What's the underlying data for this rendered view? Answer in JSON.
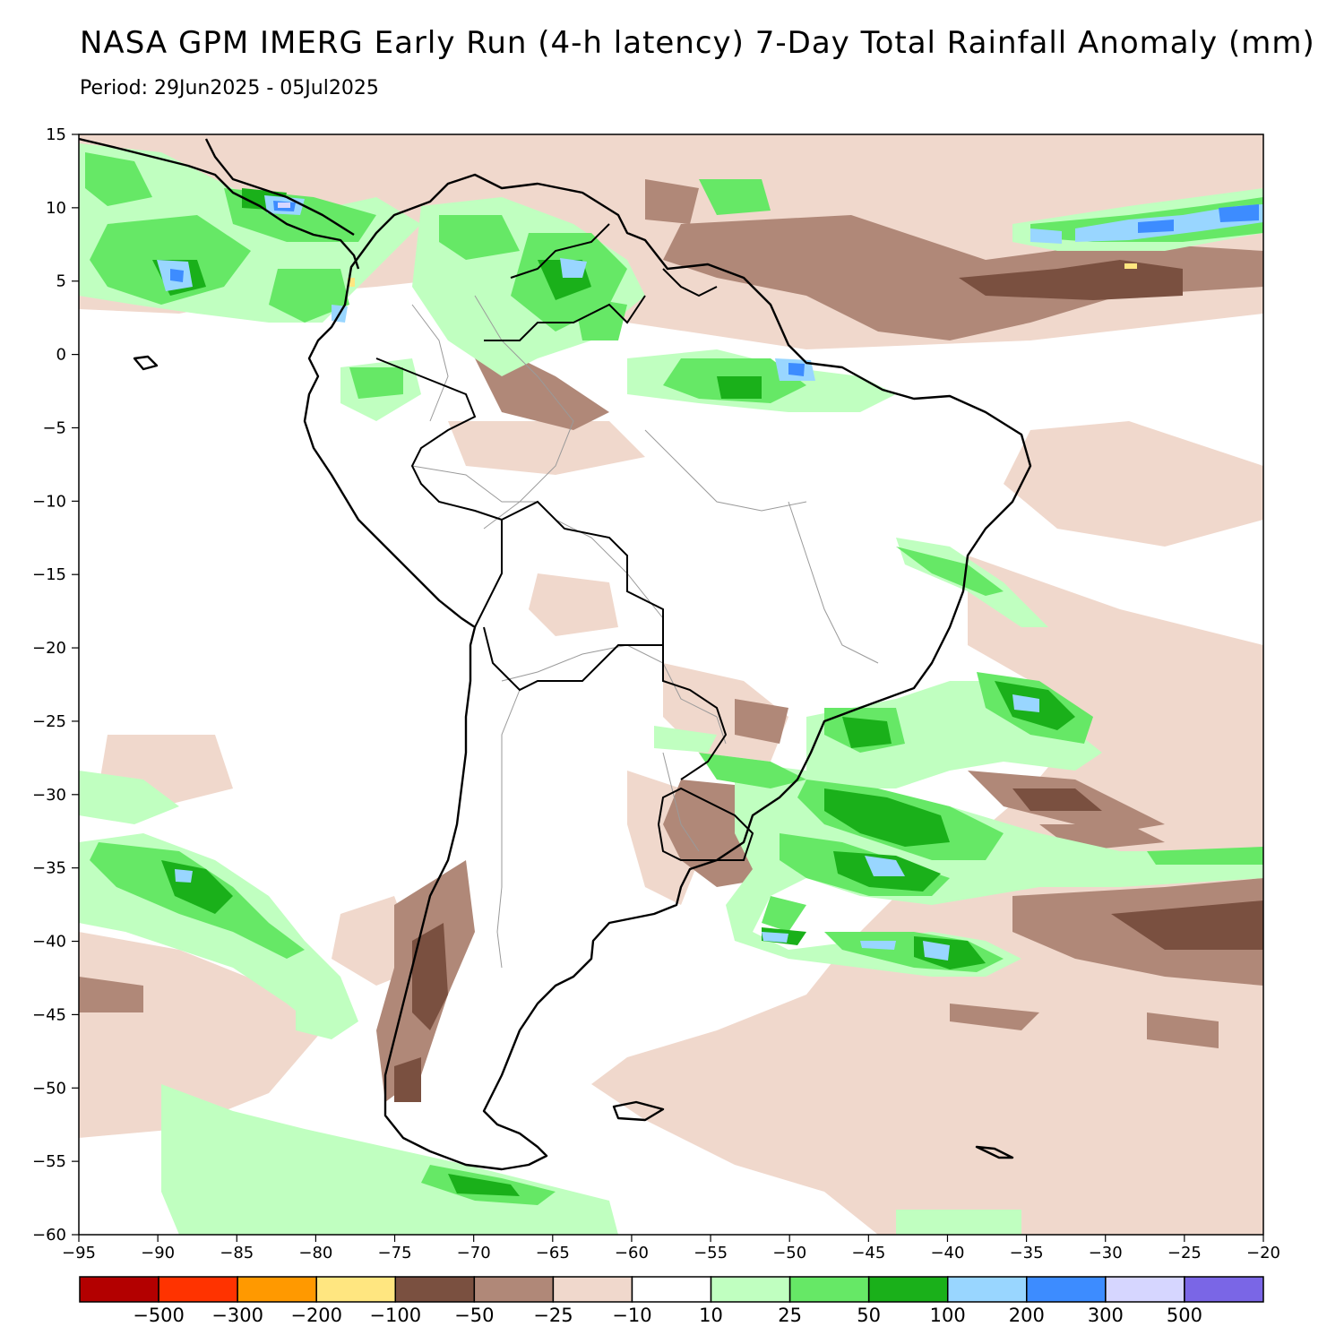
{
  "title": "NASA GPM IMERG Early Run (4-h latency) 7-Day Total Rainfall Anomaly (mm)",
  "subtitle": "Period: 29Jun2025 - 05Jul2025",
  "map": {
    "lon_range": [
      -95,
      -20
    ],
    "lat_range": [
      -60,
      15
    ],
    "x_ticks": [
      "-95",
      "-90",
      "-85",
      "-80",
      "-75",
      "-70",
      "-65",
      "-60",
      "-55",
      "-50",
      "-45",
      "-40",
      "-35",
      "-30",
      "-25",
      "-20"
    ],
    "y_ticks": [
      "15",
      "10",
      "5",
      "0",
      "-5",
      "-10",
      "-15",
      "-20",
      "-25",
      "-30",
      "-35",
      "-40",
      "-45",
      "-50",
      "-55",
      "-60"
    ]
  },
  "colorbar": {
    "colors": [
      "#b30000",
      "#ff3300",
      "#ff9900",
      "#ffe680",
      "#7a5040",
      "#b08878",
      "#f0d8cc",
      "#ffffff",
      "#c0ffc0",
      "#66e866",
      "#1ab01a",
      "#99d6ff",
      "#3d8cff",
      "#d6d6ff",
      "#7a66e6"
    ],
    "labels": [
      "-500",
      "-300",
      "-200",
      "-100",
      "-50",
      "-25",
      "-10",
      "10",
      "25",
      "50",
      "100",
      "200",
      "300",
      "500"
    ]
  },
  "palette": {
    "brown_dark": "#7a5040",
    "brown_mid": "#b08878",
    "brown_light": "#f0d8cc",
    "green_light": "#c0ffc0",
    "green_mid": "#66e866",
    "green_dark": "#1ab01a",
    "blue_light": "#99d6ff",
    "blue_mid": "#3d8cff"
  }
}
